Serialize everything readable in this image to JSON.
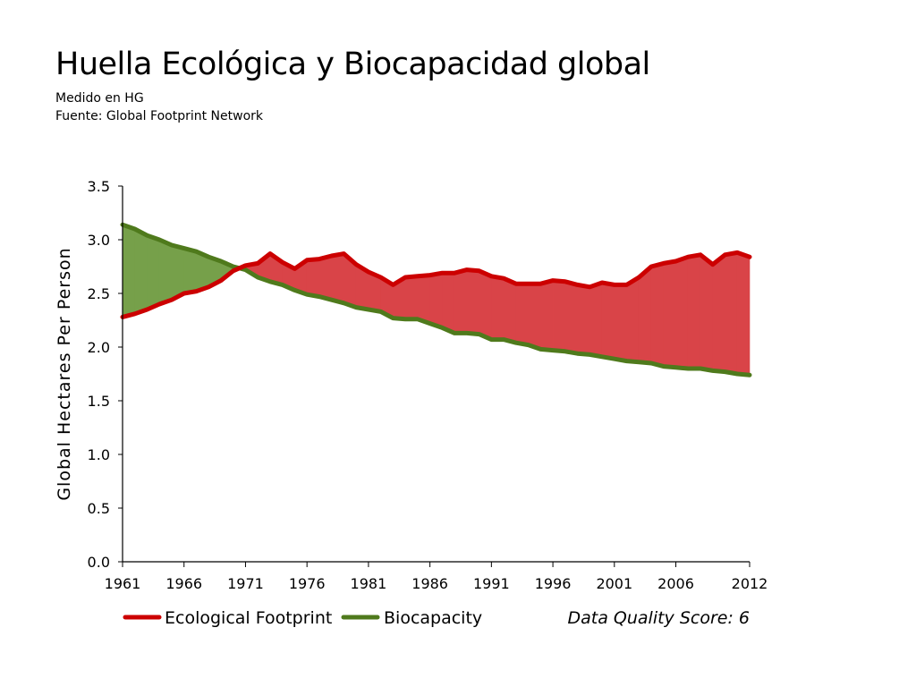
{
  "header": {
    "title": "Huella Ecológica y Biocapacidad global",
    "subtitle_1": "Medido en HG",
    "subtitle_2": "Fuente: Global Footprint Network"
  },
  "colors": {
    "footprint_line": "#cc0000",
    "deficit_fill": "#d94448",
    "biocapacity_line": "#4f7a1c",
    "reserve_fill": "#76a04a"
  },
  "chart_data": {
    "type": "area",
    "ylabel": "Global Hectares Per Person",
    "xlabel": "",
    "ylim": [
      0,
      3.5
    ],
    "xlim": [
      1961,
      2012
    ],
    "y_ticks": [
      "0.0",
      "0.5",
      "1.0",
      "1.5",
      "2.0",
      "2.5",
      "3.0",
      "3.5"
    ],
    "x_ticks": [
      "1961",
      "1966",
      "1971",
      "1976",
      "1981",
      "1986",
      "1991",
      "1996",
      "2001",
      "2006",
      "2012"
    ],
    "legend_position": "bottom-left",
    "annotation": "Data Quality Score: 6",
    "x": [
      1961,
      1962,
      1963,
      1964,
      1965,
      1966,
      1967,
      1968,
      1969,
      1970,
      1971,
      1972,
      1973,
      1974,
      1975,
      1976,
      1977,
      1978,
      1979,
      1980,
      1981,
      1982,
      1983,
      1984,
      1985,
      1986,
      1987,
      1988,
      1989,
      1990,
      1991,
      1992,
      1993,
      1994,
      1995,
      1996,
      1997,
      1998,
      1999,
      2000,
      2001,
      2002,
      2003,
      2004,
      2005,
      2006,
      2007,
      2008,
      2009,
      2010,
      2011,
      2012
    ],
    "series": [
      {
        "name": "Ecological Footprint",
        "values": [
          2.28,
          2.31,
          2.35,
          2.4,
          2.44,
          2.5,
          2.52,
          2.56,
          2.62,
          2.71,
          2.76,
          2.78,
          2.87,
          2.79,
          2.73,
          2.81,
          2.82,
          2.85,
          2.87,
          2.77,
          2.7,
          2.65,
          2.58,
          2.65,
          2.66,
          2.67,
          2.69,
          2.69,
          2.72,
          2.71,
          2.66,
          2.64,
          2.59,
          2.59,
          2.59,
          2.62,
          2.61,
          2.58,
          2.56,
          2.6,
          2.58,
          2.58,
          2.65,
          2.75,
          2.78,
          2.8,
          2.84,
          2.86,
          2.77,
          2.86,
          2.88,
          2.84
        ]
      },
      {
        "name": "Biocapacity",
        "values": [
          3.14,
          3.1,
          3.04,
          3.0,
          2.95,
          2.92,
          2.89,
          2.84,
          2.8,
          2.75,
          2.72,
          2.65,
          2.61,
          2.58,
          2.53,
          2.49,
          2.47,
          2.44,
          2.41,
          2.37,
          2.35,
          2.33,
          2.27,
          2.26,
          2.26,
          2.22,
          2.18,
          2.13,
          2.13,
          2.12,
          2.07,
          2.07,
          2.04,
          2.02,
          1.98,
          1.97,
          1.96,
          1.94,
          1.93,
          1.91,
          1.89,
          1.87,
          1.86,
          1.85,
          1.82,
          1.81,
          1.8,
          1.8,
          1.78,
          1.77,
          1.75,
          1.74
        ]
      }
    ]
  }
}
